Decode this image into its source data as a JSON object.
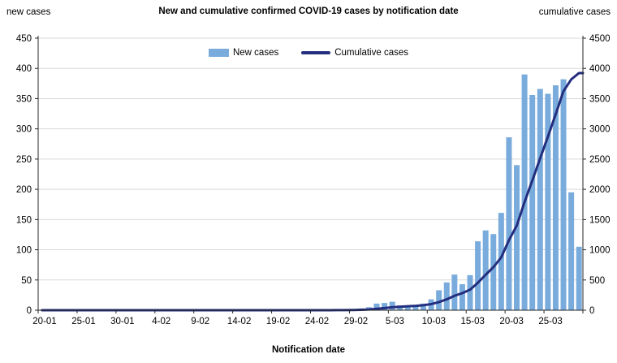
{
  "header": {
    "title": "New and cumulative confirmed COVID-19 cases by notification date",
    "left_axis_unit": "new cases",
    "right_axis_unit": "cumulative cases"
  },
  "legend": {
    "items": [
      {
        "label": "New cases",
        "marker": "bar-swatch",
        "color": "#79acdc"
      },
      {
        "label": "Cumulative cases",
        "marker": "line-swatch",
        "color": "#242e7e"
      }
    ]
  },
  "colors": {
    "bar": "#79acdc",
    "line": "#242e7e",
    "grid": "#d9d9d9",
    "axis": "#262626",
    "text": "#000000"
  },
  "chart_data": {
    "type": "bar",
    "subtype": "bar+line combo, dual axis",
    "title": "New and cumulative confirmed COVID-19 cases by notification date",
    "xlabel": "Notification date",
    "ylabel_left": "new cases",
    "ylabel_right": "cumulative cases",
    "grid": "horizontal",
    "legend_position": "top-center",
    "categories": [
      "20-01",
      "21-01",
      "22-01",
      "23-01",
      "24-01",
      "25-01",
      "26-01",
      "27-01",
      "28-01",
      "29-01",
      "30-01",
      "31-01",
      "1-02",
      "2-02",
      "3-02",
      "4-02",
      "5-02",
      "6-02",
      "7-02",
      "8-02",
      "9-02",
      "10-02",
      "11-02",
      "12-02",
      "13-02",
      "14-02",
      "15-02",
      "16-02",
      "17-02",
      "18-02",
      "19-02",
      "20-02",
      "21-02",
      "22-02",
      "23-02",
      "24-02",
      "25-02",
      "26-02",
      "27-02",
      "28-02",
      "29-02",
      "1-03",
      "2-03",
      "3-03",
      "4-03",
      "5-03",
      "6-03",
      "7-03",
      "8-03",
      "9-03",
      "10-03",
      "11-03",
      "12-03",
      "13-03",
      "14-03",
      "15-03",
      "16-03",
      "17-03",
      "18-03",
      "19-03",
      "20-03",
      "21-03",
      "22-03",
      "23-03",
      "24-03",
      "25-03",
      "26-03",
      "27-03",
      "28-03",
      "29-03"
    ],
    "x_tick_labels": [
      "20-01",
      "25-01",
      "30-01",
      "4-02",
      "9-02",
      "14-02",
      "19-02",
      "24-02",
      "29-02",
      "5-03",
      "10-03",
      "15-03",
      "20-03",
      "25-03"
    ],
    "x_tick_interval_days": 5,
    "series": [
      {
        "name": "New cases",
        "type": "bar",
        "axis": "left",
        "color": "#79acdc",
        "values": [
          0,
          0,
          0,
          0,
          0,
          0,
          0,
          0,
          0,
          0,
          0,
          0,
          0,
          0,
          0,
          0,
          0,
          0,
          0,
          0,
          0,
          0,
          0,
          0,
          0,
          0,
          0,
          0,
          0,
          0,
          0,
          0,
          0,
          0,
          0,
          0,
          0,
          0,
          1,
          1,
          2,
          3,
          5,
          11,
          12,
          14,
          8,
          8,
          7,
          11,
          18,
          33,
          46,
          59,
          43,
          58,
          114,
          132,
          126,
          161,
          286,
          240,
          390,
          356,
          366,
          358,
          372,
          382,
          195,
          105
        ]
      },
      {
        "name": "Cumulative cases",
        "type": "line",
        "axis": "right",
        "color": "#242e7e",
        "values": [
          0,
          0,
          0,
          0,
          0,
          0,
          0,
          0,
          0,
          0,
          0,
          0,
          0,
          0,
          0,
          0,
          0,
          0,
          0,
          0,
          0,
          0,
          0,
          0,
          0,
          0,
          0,
          0,
          0,
          0,
          0,
          0,
          0,
          0,
          0,
          0,
          0,
          0,
          1,
          2,
          4,
          7,
          12,
          23,
          35,
          49,
          57,
          65,
          72,
          83,
          101,
          134,
          180,
          239,
          282,
          340,
          454,
          586,
          712,
          873,
          1159,
          1399,
          1789,
          2145,
          2511,
          2869,
          3241,
          3623,
          3818,
          3923
        ]
      }
    ],
    "left_axis": {
      "min": 0,
      "max": 450,
      "step": 50,
      "ticks": [
        0,
        50,
        100,
        150,
        200,
        250,
        300,
        350,
        400,
        450
      ]
    },
    "right_axis": {
      "min": 0,
      "max": 4500,
      "step": 500,
      "ticks": [
        0,
        500,
        1000,
        1500,
        2000,
        2500,
        3000,
        3500,
        4000,
        4500
      ]
    }
  }
}
